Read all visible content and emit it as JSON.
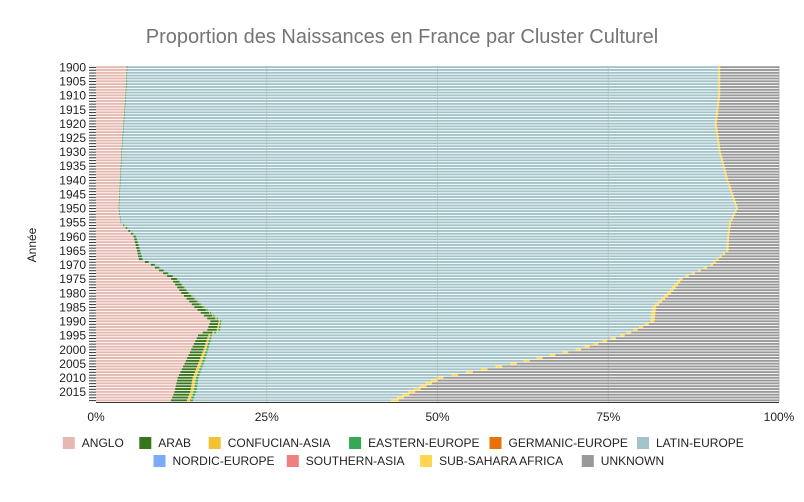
{
  "chart_data": {
    "type": "bar",
    "orientation": "horizontal",
    "stacked": "percent",
    "title": "Proportion des Naissances en France par Cluster Culturel",
    "ylabel": "Année",
    "xlabel": "",
    "x_ticks": [
      "0%",
      "25%",
      "50%",
      "75%",
      "100%"
    ],
    "xlim": [
      0,
      100
    ],
    "y_ticks": [
      "1900",
      "1905",
      "1910",
      "1915",
      "1920",
      "1925",
      "1930",
      "1935",
      "1940",
      "1945",
      "1950",
      "1955",
      "1960",
      "1965",
      "1970",
      "1975",
      "1980",
      "1985",
      "1990",
      "1995",
      "2000",
      "2005",
      "2010",
      "2015"
    ],
    "year_start": 1900,
    "year_end": 2018,
    "grid": true,
    "legend_position": "bottom",
    "series": [
      {
        "name": "ANGLO",
        "color": "#e6b8af",
        "anchors": [
          [
            1900,
            4.5
          ],
          [
            1905,
            4.4
          ],
          [
            1910,
            4.3
          ],
          [
            1920,
            4.0
          ],
          [
            1930,
            3.7
          ],
          [
            1940,
            3.5
          ],
          [
            1950,
            3.3
          ],
          [
            1955,
            3.6
          ],
          [
            1960,
            5.5
          ],
          [
            1965,
            6.0
          ],
          [
            1968,
            6.2
          ],
          [
            1970,
            8
          ],
          [
            1975,
            11
          ],
          [
            1980,
            12.5
          ],
          [
            1985,
            14.5
          ],
          [
            1990,
            16.8
          ],
          [
            1993,
            16.5
          ],
          [
            1995,
            15
          ],
          [
            2000,
            14
          ],
          [
            2005,
            13
          ],
          [
            2010,
            12
          ],
          [
            2015,
            11.5
          ],
          [
            2018,
            11
          ]
        ]
      },
      {
        "name": "ARAB",
        "color": "#38761d",
        "anchors": [
          [
            1900,
            0
          ],
          [
            1955,
            0
          ],
          [
            1960,
            0.3
          ],
          [
            1965,
            0.4
          ],
          [
            1970,
            0.5
          ],
          [
            1975,
            0.8
          ],
          [
            1980,
            1.0
          ],
          [
            1985,
            1.2
          ],
          [
            1990,
            1.2
          ],
          [
            1995,
            1.5
          ],
          [
            2000,
            1.8
          ],
          [
            2005,
            2.0
          ],
          [
            2010,
            2.2
          ],
          [
            2015,
            2.3
          ],
          [
            2018,
            2.3
          ]
        ]
      },
      {
        "name": "CONFUCIAN-ASIA",
        "color": "#f1c232",
        "anchors": [
          [
            1900,
            0
          ],
          [
            1975,
            0
          ],
          [
            1985,
            0.1
          ],
          [
            1995,
            0.3
          ],
          [
            2005,
            0.5
          ],
          [
            2018,
            0.5
          ]
        ]
      },
      {
        "name": "EASTERN-EUROPE",
        "color": "#34a853",
        "anchors": [
          [
            1900,
            0.1
          ],
          [
            1980,
            0.1
          ],
          [
            2000,
            0.3
          ],
          [
            2018,
            0.4
          ]
        ]
      },
      {
        "name": "GERMANIC-EUROPE",
        "color": "#e8710a",
        "anchors": [
          [
            1900,
            0
          ],
          [
            2018,
            0
          ]
        ]
      },
      {
        "name": "LATIN-EUROPE",
        "color": "#a2c4c9",
        "anchors": [
          [
            1900,
            86.5
          ],
          [
            1910,
            86.6
          ],
          [
            1920,
            86.3
          ],
          [
            1930,
            87.2
          ],
          [
            1940,
            88.5
          ],
          [
            1950,
            90.3
          ],
          [
            1955,
            89.2
          ],
          [
            1960,
            86.5
          ],
          [
            1965,
            85.8
          ],
          [
            1970,
            81
          ],
          [
            1975,
            73.5
          ],
          [
            1980,
            70
          ],
          [
            1985,
            66
          ],
          [
            1990,
            63
          ],
          [
            1995,
            60
          ],
          [
            2000,
            54
          ],
          [
            2005,
            45
          ],
          [
            2010,
            35
          ],
          [
            2015,
            31
          ],
          [
            2018,
            29
          ]
        ]
      },
      {
        "name": "NORDIC-EUROPE",
        "color": "#7baaf7",
        "anchors": [
          [
            1900,
            0
          ],
          [
            2018,
            0
          ]
        ]
      },
      {
        "name": "SOUTHERN-ASIA",
        "color": "#f08080",
        "anchors": [
          [
            1900,
            0
          ],
          [
            2018,
            0
          ]
        ]
      },
      {
        "name": "SUB-SAHARA AFRICA",
        "color": "#ffd54f",
        "anchors": [
          [
            1900,
            0.3
          ],
          [
            1960,
            0.3
          ],
          [
            1970,
            0.4
          ],
          [
            1980,
            0.6
          ],
          [
            1990,
            0.6
          ],
          [
            2000,
            0.8
          ],
          [
            2005,
            1.0
          ],
          [
            2010,
            1.0
          ],
          [
            2018,
            1.1
          ]
        ]
      },
      {
        "name": "UNKNOWN",
        "color": "#999999",
        "anchors": [
          [
            1900,
            8.6
          ],
          [
            1910,
            8.6
          ],
          [
            1920,
            9.1
          ],
          [
            1930,
            8.5
          ],
          [
            1940,
            7.4
          ],
          [
            1950,
            6.0
          ],
          [
            1955,
            7.0
          ],
          [
            1960,
            7.3
          ],
          [
            1965,
            7.4
          ],
          [
            1970,
            9.6
          ],
          [
            1975,
            14.1
          ],
          [
            1980,
            15.8
          ],
          [
            1985,
            18.1
          ],
          [
            1990,
            18.3
          ],
          [
            1995,
            22.7
          ],
          [
            2000,
            29.1
          ],
          [
            2005,
            38.5
          ],
          [
            2010,
            49.3
          ],
          [
            2015,
            53.3
          ],
          [
            2018,
            55.7
          ]
        ]
      }
    ]
  }
}
